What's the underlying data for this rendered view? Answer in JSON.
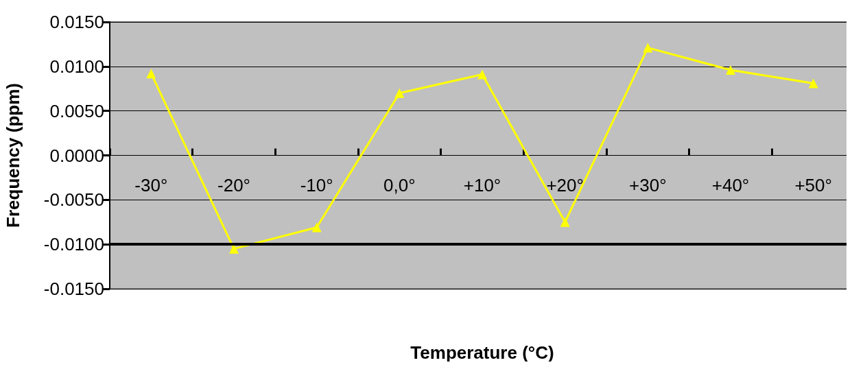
{
  "chart_data": {
    "type": "line",
    "xlabel": "Temperature (°C)",
    "ylabel": "Frequency (ppm)",
    "categories": [
      "-30°",
      "-20°",
      "-10°",
      "0,0°",
      "+10°",
      "+20°",
      "+30°",
      "+40°",
      "+50°"
    ],
    "series": [
      {
        "color": "#ffff00",
        "values": [
          0.0092,
          -0.0105,
          -0.0081,
          0.007,
          0.0091,
          -0.0075,
          0.0121,
          0.0096,
          0.0081
        ]
      }
    ],
    "ylim": [
      -0.015,
      0.015
    ],
    "yticks": [
      {
        "value": -0.015,
        "label": "-0.0150"
      },
      {
        "value": -0.01,
        "label": "-0.0100"
      },
      {
        "value": -0.005,
        "label": "-0.0050"
      },
      {
        "value": 0,
        "label": "0.0000"
      },
      {
        "value": 0.005,
        "label": "0.0050"
      },
      {
        "value": 0.01,
        "label": "0.0100"
      },
      {
        "value": 0.015,
        "label": "0.0150"
      }
    ],
    "ref_lines": [
      {
        "axis": "y",
        "value": -0.01,
        "color": "#000000"
      }
    ],
    "grid": "y",
    "marker": "triangle"
  }
}
